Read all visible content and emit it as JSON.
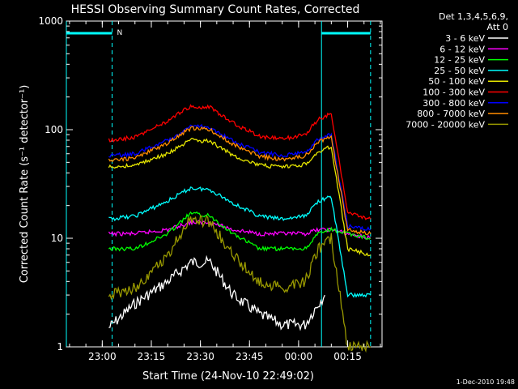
{
  "chart_data": {
    "type": "line",
    "title": "HESSI Observing Summary Count Rates, Corrected",
    "xlabel": "Start Time (24-Nov-10 22:49:02)",
    "ylabel": "Corrected Count Rate (s⁻¹ detector⁻¹)",
    "yscale": "log",
    "ylim": [
      1,
      1000
    ],
    "xlim": [
      "22:49:02",
      "00:25:30"
    ],
    "x_ticks": [
      "23:00",
      "23:15",
      "23:30",
      "23:45",
      "00:00",
      "00:15"
    ],
    "y_ticks": [
      "1",
      "10",
      "100",
      "1000"
    ],
    "legend": {
      "placement": "right",
      "header": [
        "Det 1,3,4,5,6,9,",
        "Att 0"
      ]
    },
    "flag": {
      "label": "N"
    },
    "series": [
      {
        "name": "3 - 6 keV",
        "color": "#ffffff",
        "x": [
          "23:02",
          "23:10",
          "23:20",
          "23:27",
          "23:33",
          "23:40",
          "23:48",
          "23:55",
          "00:02",
          "00:06",
          "00:08"
        ],
        "values": [
          1.5,
          2.5,
          4,
          6,
          6,
          3,
          2,
          1.6,
          1.6,
          2.5,
          3
        ]
      },
      {
        "name": "6 - 12 keV",
        "color": "#ff00ff",
        "x": [
          "23:02",
          "23:10",
          "23:20",
          "23:27",
          "23:33",
          "23:40",
          "23:48",
          "23:55",
          "00:02",
          "00:06",
          "00:10",
          "00:15",
          "00:22"
        ],
        "values": [
          11,
          11,
          12,
          14,
          14,
          12,
          11,
          11,
          11,
          12,
          12,
          11,
          10
        ]
      },
      {
        "name": "12 - 25 keV",
        "color": "#00ff00",
        "x": [
          "23:02",
          "23:10",
          "23:20",
          "23:27",
          "23:33",
          "23:40",
          "23:48",
          "23:55",
          "00:02",
          "00:06",
          "00:10",
          "00:15",
          "00:22"
        ],
        "values": [
          8,
          8,
          11,
          17,
          16,
          11,
          8,
          8,
          8,
          11,
          12,
          11,
          10
        ]
      },
      {
        "name": "25 - 50 keV",
        "color": "#00ffff",
        "x": [
          "23:02",
          "23:10",
          "23:20",
          "23:27",
          "23:33",
          "23:40",
          "23:48",
          "23:55",
          "00:02",
          "00:06",
          "00:10",
          "00:15",
          "00:22"
        ],
        "values": [
          15,
          16,
          22,
          29,
          28,
          21,
          16,
          15,
          16,
          22,
          24,
          3,
          3
        ]
      },
      {
        "name": "50 - 100 keV",
        "color": "#e6e600",
        "x": [
          "23:02",
          "23:10",
          "23:20",
          "23:27",
          "23:33",
          "23:40",
          "23:48",
          "23:55",
          "00:02",
          "00:06",
          "00:10",
          "00:15",
          "00:22"
        ],
        "values": [
          45,
          47,
          60,
          80,
          78,
          58,
          47,
          45,
          48,
          62,
          70,
          8,
          7
        ]
      },
      {
        "name": "100 - 300 keV",
        "color": "#ff0000",
        "x": [
          "23:02",
          "23:10",
          "23:20",
          "23:27",
          "23:33",
          "23:40",
          "23:48",
          "23:55",
          "00:02",
          "00:06",
          "00:10",
          "00:15",
          "00:22"
        ],
        "values": [
          80,
          85,
          120,
          165,
          160,
          115,
          87,
          82,
          90,
          125,
          140,
          17,
          15
        ]
      },
      {
        "name": "300 - 800 keV",
        "color": "#0000ff",
        "x": [
          "23:02",
          "23:10",
          "23:20",
          "23:27",
          "23:33",
          "23:40",
          "23:48",
          "23:55",
          "00:02",
          "00:06",
          "00:10",
          "00:15",
          "00:22"
        ],
        "values": [
          57,
          60,
          80,
          108,
          105,
          78,
          62,
          58,
          62,
          82,
          90,
          13,
          12
        ]
      },
      {
        "name": "800 - 7000 keV",
        "color": "#ff8c00",
        "x": [
          "23:02",
          "23:10",
          "23:20",
          "23:27",
          "23:33",
          "23:40",
          "23:48",
          "23:55",
          "00:02",
          "00:06",
          "00:10",
          "00:15",
          "00:22"
        ],
        "values": [
          52,
          55,
          75,
          103,
          100,
          73,
          57,
          53,
          57,
          78,
          85,
          12,
          11
        ]
      },
      {
        "name": "7000 - 20000 keV",
        "color": "#999900",
        "x": [
          "23:02",
          "23:10",
          "23:20",
          "23:27",
          "23:33",
          "23:40",
          "23:48",
          "23:55",
          "00:02",
          "00:06",
          "00:10",
          "00:15",
          "00:22"
        ],
        "values": [
          3,
          3.5,
          7,
          15,
          14,
          7,
          4,
          3.5,
          4,
          8,
          10,
          1,
          1
        ]
      }
    ]
  },
  "footer": {
    "date": "1-Dec-2010 19:48"
  }
}
